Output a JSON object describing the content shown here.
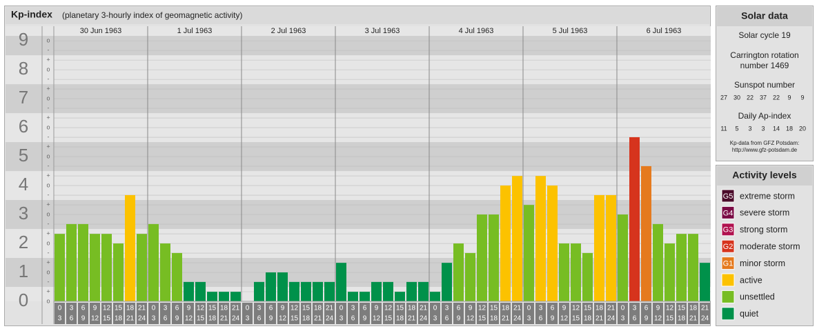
{
  "chart_data": {
    "type": "bar",
    "title": "Kp-index",
    "subtitle": "(planetary 3-hourly index of geomagnetic activity)",
    "ylim": [
      0,
      9.17
    ],
    "yticks": [
      0,
      1,
      2,
      3,
      4,
      5,
      6,
      7,
      8,
      9
    ],
    "minor_labels": [
      "-",
      "o",
      "+"
    ],
    "interval_start_hours": [
      0,
      3,
      6,
      9,
      12,
      15,
      18,
      21
    ],
    "interval_end_hours": [
      3,
      6,
      9,
      12,
      15,
      18,
      21,
      24
    ],
    "days": [
      {
        "label": "30 Jun 1963",
        "values": [
          2.33,
          2.67,
          2.67,
          2.33,
          2.33,
          2,
          3.67,
          2.33
        ],
        "colors": [
          "#77bd23",
          "#77bd23",
          "#77bd23",
          "#77bd23",
          "#77bd23",
          "#77bd23",
          "#fcc200",
          "#77bd23"
        ]
      },
      {
        "label": "1 Jul 1963",
        "values": [
          2.67,
          2,
          1.67,
          0.67,
          0.67,
          0.33,
          0.33,
          0.33
        ],
        "colors": [
          "#77bd23",
          "#77bd23",
          "#77bd23",
          "#00914a",
          "#00914a",
          "#00914a",
          "#00914a",
          "#00914a"
        ]
      },
      {
        "label": "2 Jul 1963",
        "values": [
          0,
          0.67,
          1,
          1,
          0.67,
          0.67,
          0.67,
          0.67
        ],
        "colors": [
          "#00914a",
          "#00914a",
          "#00914a",
          "#00914a",
          "#00914a",
          "#00914a",
          "#00914a",
          "#00914a"
        ]
      },
      {
        "label": "3 Jul 1963",
        "values": [
          1.33,
          0.33,
          0.33,
          0.67,
          0.67,
          0.33,
          0.67,
          0.67
        ],
        "colors": [
          "#00914a",
          "#00914a",
          "#00914a",
          "#00914a",
          "#00914a",
          "#00914a",
          "#00914a",
          "#00914a"
        ]
      },
      {
        "label": "4 Jul 1963",
        "values": [
          0.33,
          1.33,
          2,
          1.67,
          3,
          3,
          4,
          4.33
        ],
        "colors": [
          "#00914a",
          "#00914a",
          "#77bd23",
          "#77bd23",
          "#77bd23",
          "#77bd23",
          "#fcc200",
          "#fcc200"
        ]
      },
      {
        "label": "5 Jul 1963",
        "values": [
          3.33,
          4.33,
          4,
          2,
          2,
          1.67,
          3.67,
          3.67
        ],
        "colors": [
          "#77bd23",
          "#fcc200",
          "#fcc200",
          "#77bd23",
          "#77bd23",
          "#77bd23",
          "#fcc200",
          "#fcc200"
        ]
      },
      {
        "label": "6 Jul 1963",
        "values": [
          3,
          5.67,
          4.67,
          2.67,
          2,
          2.33,
          2.33,
          1.33
        ],
        "colors": [
          "#77bd23",
          "#d6341d",
          "#e57a1e",
          "#77bd23",
          "#77bd23",
          "#77bd23",
          "#77bd23",
          "#00914a"
        ]
      }
    ]
  },
  "solar_data": {
    "title": "Solar data",
    "solar_cycle": "Solar cycle 19",
    "carrington_line1": "Carrington rotation",
    "carrington_line2": "number 1469",
    "sunspot_title": "Sunspot number",
    "sunspot_numbers": [
      27,
      30,
      22,
      37,
      22,
      9,
      9
    ],
    "ap_title": "Daily Ap-index",
    "ap_values": [
      11,
      5,
      3,
      3,
      14,
      18,
      20
    ],
    "source_line1": "Kp-data from GFZ Potsdam:",
    "source_line2": "http://www.gfz-potsdam.de"
  },
  "activity_levels": {
    "title": "Activity levels",
    "levels": [
      {
        "code": "G5",
        "name": "extreme storm",
        "color": "#4b0b2a"
      },
      {
        "code": "G4",
        "name": "severe storm",
        "color": "#7a0b45"
      },
      {
        "code": "G3",
        "name": "strong storm",
        "color": "#b0124f"
      },
      {
        "code": "G2",
        "name": "moderate storm",
        "color": "#d6341d"
      },
      {
        "code": "G1",
        "name": "minor storm",
        "color": "#e57a1e"
      },
      {
        "name": "active",
        "color": "#fcc200"
      },
      {
        "name": "unsettled",
        "color": "#77bd23"
      },
      {
        "name": "quiet",
        "color": "#00914a"
      }
    ]
  }
}
